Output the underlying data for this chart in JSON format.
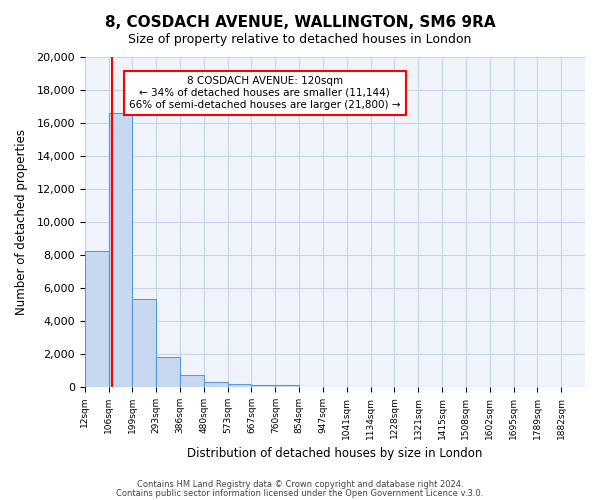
{
  "title": "8, COSDACH AVENUE, WALLINGTON, SM6 9RA",
  "subtitle": "Size of property relative to detached houses in London",
  "xlabel": "Distribution of detached houses by size in London",
  "ylabel": "Number of detached properties",
  "bin_labels": [
    "12sqm",
    "106sqm",
    "199sqm",
    "293sqm",
    "386sqm",
    "480sqm",
    "573sqm",
    "667sqm",
    "760sqm",
    "854sqm",
    "947sqm",
    "1041sqm",
    "1134sqm",
    "1228sqm",
    "1321sqm",
    "1415sqm",
    "1508sqm",
    "1602sqm",
    "1695sqm",
    "1789sqm",
    "1882sqm"
  ],
  "bar_heights": [
    8200,
    16600,
    5300,
    1800,
    700,
    300,
    200,
    100,
    100,
    0,
    0,
    0,
    0,
    0,
    0,
    0,
    0,
    0,
    0,
    0
  ],
  "bar_color": "#c6d9f0",
  "bar_edge_color": "#5b9bd5",
  "property_line_x": 1,
  "property_sqm": "120sqm",
  "pct_smaller": 34,
  "count_smaller": "11,144",
  "pct_larger": 66,
  "count_larger": "21,800",
  "annotation_address": "8 COSDACH AVENUE: 120sqm",
  "ylim": [
    0,
    20000
  ],
  "yticks": [
    0,
    2000,
    4000,
    6000,
    8000,
    10000,
    12000,
    14000,
    16000,
    18000,
    20000
  ],
  "footer1": "Contains HM Land Registry data © Crown copyright and database right 2024.",
  "footer2": "Contains public sector information licensed under the Open Government Licence v.3.0.",
  "bg_color": "#f0f4fa",
  "grid_color": "#c8d4e8"
}
